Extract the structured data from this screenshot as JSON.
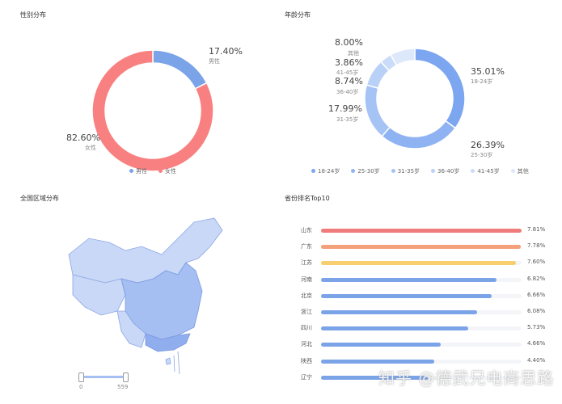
{
  "gender": {
    "title": "性别分布",
    "slices": [
      {
        "name": "男性",
        "pct": "17.40%",
        "value": 17.4,
        "color": "#7ba3e8"
      },
      {
        "name": "女性",
        "pct": "82.60%",
        "value": 82.6,
        "color": "#f98080"
      }
    ]
  },
  "age": {
    "title": "年龄分布",
    "slices": [
      {
        "name": "18-24岁",
        "pct": "35.01%",
        "value": 35.01,
        "color": "#7ca6f0"
      },
      {
        "name": "25-30岁",
        "pct": "26.39%",
        "value": 26.39,
        "color": "#8fb3f2"
      },
      {
        "name": "31-35岁",
        "pct": "17.99%",
        "value": 17.99,
        "color": "#a6c3f5"
      },
      {
        "name": "36-40岁",
        "pct": "8.74%",
        "value": 8.74,
        "color": "#b9d0f7"
      },
      {
        "name": "41-45岁",
        "pct": "3.86%",
        "value": 3.86,
        "color": "#cbdcf9"
      },
      {
        "name": "其他",
        "pct": "8.00%",
        "value": 8.0,
        "color": "#dde8fb"
      }
    ]
  },
  "region": {
    "title": "全国区域分布",
    "range_min": "0",
    "range_max": "559"
  },
  "provinces": {
    "title": "省份排名Top10",
    "items": [
      {
        "name": "山东",
        "pct": "7.81%",
        "value": 7.81,
        "color": "#f07b7b"
      },
      {
        "name": "广东",
        "pct": "7.78%",
        "value": 7.78,
        "color": "#f4a07a"
      },
      {
        "name": "江苏",
        "pct": "7.60%",
        "value": 7.6,
        "color": "#f7cf6e"
      },
      {
        "name": "河南",
        "pct": "6.82%",
        "value": 6.82,
        "color": "#7ba3e8"
      },
      {
        "name": "北京",
        "pct": "6.66%",
        "value": 6.66,
        "color": "#7ba3e8"
      },
      {
        "name": "浙江",
        "pct": "6.08%",
        "value": 6.08,
        "color": "#7ba3e8"
      },
      {
        "name": "四川",
        "pct": "5.73%",
        "value": 5.73,
        "color": "#7ba3e8"
      },
      {
        "name": "河北",
        "pct": "4.66%",
        "value": 4.66,
        "color": "#7ba3e8"
      },
      {
        "name": "陕西",
        "pct": "4.40%",
        "value": 4.4,
        "color": "#7ba3e8"
      },
      {
        "name": "辽宁",
        "pct": "",
        "value": 4.2,
        "color": "#7ba3e8"
      }
    ]
  },
  "watermark": "知乎 @德武兄电商思路"
}
